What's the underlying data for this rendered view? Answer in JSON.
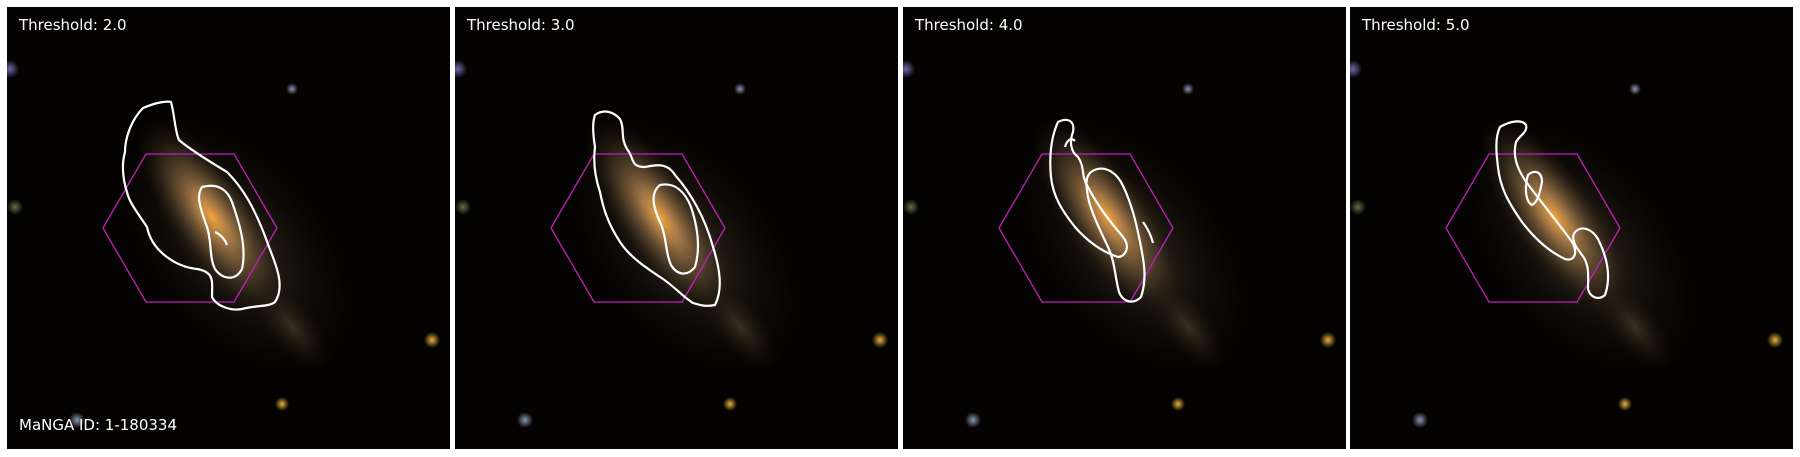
{
  "figure": {
    "manga_id": "MaNGA ID: 1-180334",
    "panels": [
      {
        "threshold": "Threshold: 2.0"
      },
      {
        "threshold": "Threshold: 3.0"
      },
      {
        "threshold": "Threshold: 4.0"
      },
      {
        "threshold": "Threshold: 5.0"
      }
    ],
    "colors": {
      "background": "#050302",
      "contour": "#ffffff",
      "hexagon": "#c020c0",
      "galaxy_core": "#e0a040"
    }
  }
}
